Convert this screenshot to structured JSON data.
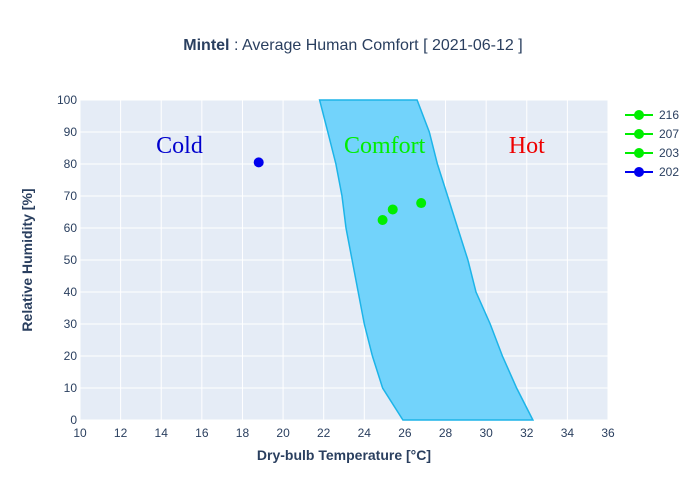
{
  "chart_data": {
    "type": "scatter",
    "title_bold": "Mintel",
    "title_rest": " : Average Human Comfort [ 2021-06-12 ]",
    "xlabel": "Dry-bulb Temperature [°C]",
    "ylabel": "Relative Humidity [%]",
    "xlim": [
      10,
      36
    ],
    "ylim": [
      0,
      100
    ],
    "x_ticks": [
      10,
      12,
      14,
      16,
      18,
      20,
      22,
      24,
      26,
      28,
      30,
      32,
      34,
      36
    ],
    "y_ticks": [
      0,
      10,
      20,
      30,
      40,
      50,
      60,
      70,
      80,
      90,
      100
    ],
    "grid": true,
    "legend_position": "top-right",
    "comfort_zone": {
      "left_boundary": [
        [
          21.8,
          100
        ],
        [
          22.2,
          90
        ],
        [
          22.6,
          80
        ],
        [
          22.9,
          70
        ],
        [
          23.1,
          60
        ],
        [
          23.4,
          50
        ],
        [
          23.7,
          40
        ],
        [
          24.0,
          30
        ],
        [
          24.4,
          20
        ],
        [
          24.9,
          10
        ],
        [
          25.9,
          0
        ]
      ],
      "right_boundary": [
        [
          26.6,
          100
        ],
        [
          27.2,
          90
        ],
        [
          27.6,
          80
        ],
        [
          28.1,
          70
        ],
        [
          28.6,
          60
        ],
        [
          29.1,
          50
        ],
        [
          29.5,
          40
        ],
        [
          30.2,
          30
        ],
        [
          30.8,
          20
        ],
        [
          31.5,
          10
        ],
        [
          32.3,
          0
        ]
      ],
      "fill": "#72d3fb",
      "stroke": "#1db4e8"
    },
    "zones": [
      {
        "label": "Cold",
        "x": 14.9,
        "y": 86,
        "color": "#0000cd"
      },
      {
        "label": "Comfort",
        "x": 25.0,
        "y": 86,
        "color": "#00ee00"
      },
      {
        "label": "Hot",
        "x": 32.0,
        "y": 86,
        "color": "#ee0000"
      }
    ],
    "series": [
      {
        "name": "216",
        "x": 26.8,
        "y": 67.8,
        "color": "#00ee00"
      },
      {
        "name": "207",
        "x": 25.4,
        "y": 65.8,
        "color": "#00ee00"
      },
      {
        "name": "203",
        "x": 24.9,
        "y": 62.5,
        "color": "#00ee00"
      },
      {
        "name": "202",
        "x": 18.8,
        "y": 80.5,
        "color": "#0000ee"
      }
    ],
    "colors": {
      "plot_bg": "#e5ecf6",
      "grid": "#ffffff",
      "text": "#2a3f5f"
    }
  }
}
